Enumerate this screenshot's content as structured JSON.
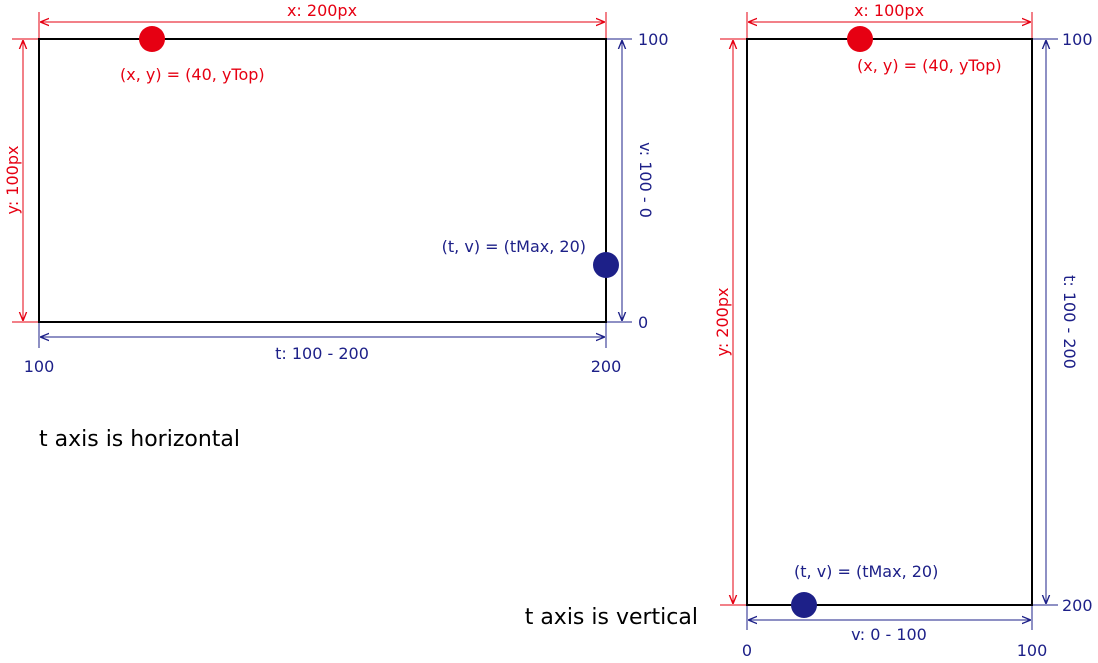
{
  "colors": {
    "red": "#e60012",
    "blue": "#1d2088",
    "frame": "#000000"
  },
  "left_panel": {
    "x_label": "x: 200px",
    "y_label": "y: 100px",
    "t_label": "t: 100 - 200",
    "v_label": "v: 100 - 0",
    "v_top": "100",
    "v_bottom": "0",
    "t_start": "100",
    "t_end": "200",
    "xy_point_label": "(x, y) = (40, yTop)",
    "tv_point_label": "(t, v) = (tMax, 20)",
    "caption": "t axis is horizontal"
  },
  "right_panel": {
    "x_label": "x: 100px",
    "y_label": "y: 200px",
    "t_label": "t: 100 - 200",
    "v_label": "v: 0 - 100",
    "t_top": "100",
    "t_bottom": "200",
    "v_start": "0",
    "v_end": "100",
    "xy_point_label": "(x, y) = (40, yTop)",
    "tv_point_label": "(t, v) = (tMax, 20)",
    "caption": "t axis is vertical"
  }
}
